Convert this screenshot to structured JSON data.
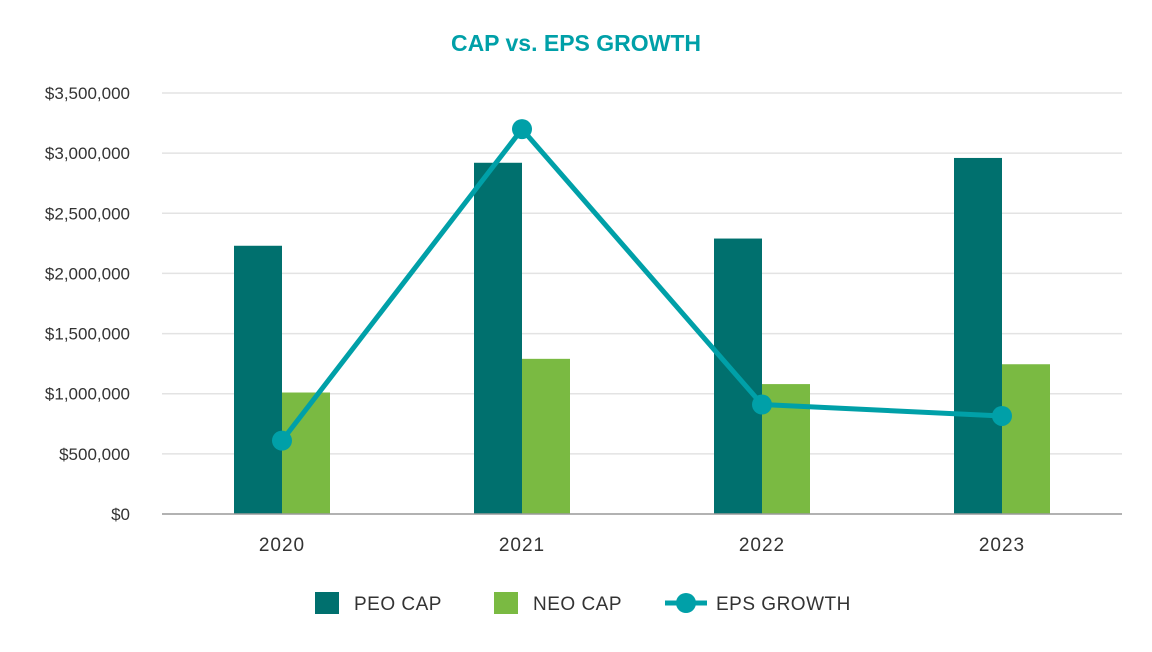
{
  "chart_data": {
    "type": "bar",
    "title": "CAP vs. EPS GROWTH",
    "categories": [
      "2020",
      "2021",
      "2022",
      "2023"
    ],
    "ylim": [
      0,
      3500000
    ],
    "y_ticks": [
      0,
      500000,
      1000000,
      1500000,
      2000000,
      2500000,
      3000000,
      3500000
    ],
    "y_tick_labels": [
      "$0",
      "$500,000",
      "$1,000,000",
      "$1,500,000",
      "$2,000,000",
      "$2,500,000",
      "$3,000,000",
      "$3,500,000"
    ],
    "xlabel": "",
    "ylabel": "",
    "grid": true,
    "legend_position": "bottom",
    "series": [
      {
        "name": "PEO CAP",
        "kind": "bar",
        "color": "#00706e",
        "values": [
          2230000,
          2920000,
          2290000,
          2960000
        ]
      },
      {
        "name": "NEO CAP",
        "kind": "bar",
        "color": "#7aba42",
        "values": [
          1010000,
          1290000,
          1080000,
          1245000
        ]
      },
      {
        "name": "EPS GROWTH",
        "kind": "line",
        "color": "#00a0a8",
        "values": [
          610000,
          3200000,
          910000,
          815000
        ]
      }
    ],
    "title_color": "#00a0a8"
  }
}
